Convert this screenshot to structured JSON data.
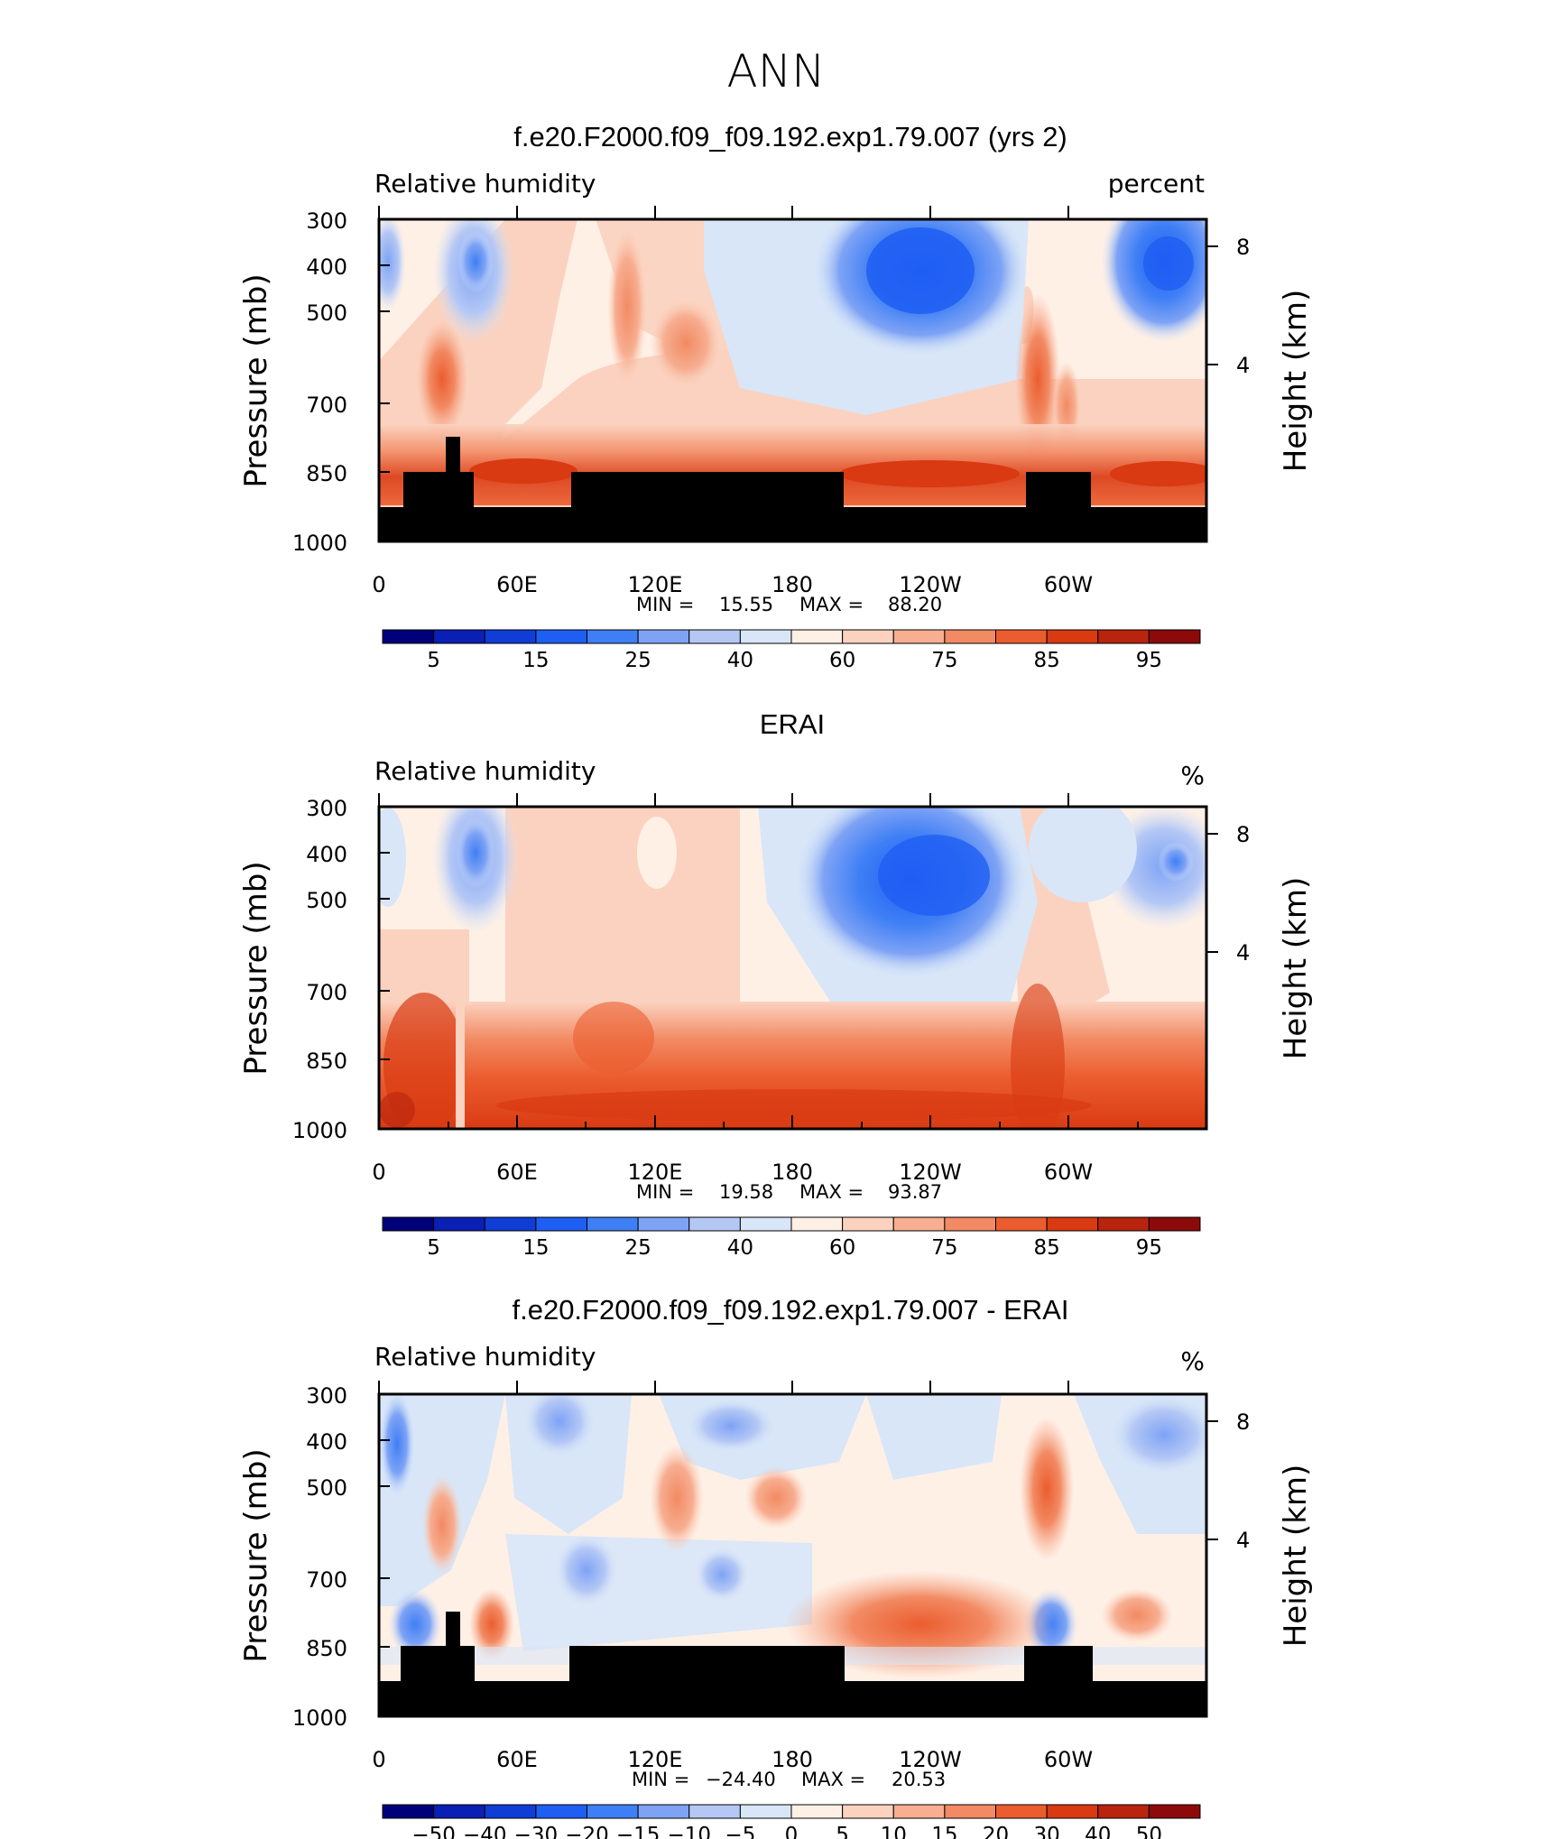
{
  "figure_title": "ANN",
  "colors": {
    "rh_scale": [
      "#00007a",
      "#0a1fb3",
      "#0f3dd6",
      "#1f5ef2",
      "#3f7ff5",
      "#7ea3f5",
      "#b5c8f5",
      "#d8e6f8",
      "#fff0e6",
      "#fbd2bf",
      "#f7ae91",
      "#f28a63",
      "#eb5d2f",
      "#d93a12",
      "#b8240e",
      "#8c0a0a"
    ],
    "diff_scale": [
      "#00007a",
      "#0a1fb3",
      "#0f3dd6",
      "#1f5ef2",
      "#3f7ff5",
      "#7ea3f5",
      "#b5c8f5",
      "#d8e6f8",
      "#fff0e6",
      "#fbd2bf",
      "#f7ae91",
      "#f28a63",
      "#eb5d2f",
      "#d93a12",
      "#b8240e",
      "#8c0a0a"
    ],
    "terrain": "#000000"
  },
  "chart_data": [
    {
      "type": "heatmap",
      "title": "f.e20.F2000.f09_f09.192.exp1.79.007 (yrs 2)",
      "left_label": "Relative humidity",
      "right_label": "percent",
      "ylabel": "Pressure (mb)",
      "ylabel_right": "Height (km)",
      "y_ticks": [
        "300",
        "400",
        "500",
        "700",
        "850",
        "1000"
      ],
      "y_right_ticks": [
        "8",
        "4"
      ],
      "x_ticks": [
        "0",
        "60E",
        "120E",
        "180",
        "120W",
        "60W"
      ],
      "stats": {
        "min_label": "MIN =",
        "min": "15.55",
        "max_label": "MAX =",
        "max": "88.20"
      },
      "colorbar_labels": [
        "5",
        "15",
        "25",
        "40",
        "60",
        "75",
        "85",
        "95"
      ],
      "terrain": true
    },
    {
      "type": "heatmap",
      "title": "ERAI",
      "left_label": "Relative humidity",
      "right_label": "%",
      "ylabel": "Pressure (mb)",
      "ylabel_right": "Height (km)",
      "y_ticks": [
        "300",
        "400",
        "500",
        "700",
        "850",
        "1000"
      ],
      "y_right_ticks": [
        "8",
        "4"
      ],
      "x_ticks": [
        "0",
        "60E",
        "120E",
        "180",
        "120W",
        "60W"
      ],
      "stats": {
        "min_label": "MIN =",
        "min": "19.58",
        "max_label": "MAX =",
        "max": "93.87"
      },
      "colorbar_labels": [
        "5",
        "15",
        "25",
        "40",
        "60",
        "75",
        "85",
        "95"
      ],
      "terrain": false
    },
    {
      "type": "heatmap",
      "title": "f.e20.F2000.f09_f09.192.exp1.79.007 - ERAI",
      "left_label": "Relative humidity",
      "right_label": "%",
      "ylabel": "Pressure (mb)",
      "ylabel_right": "Height (km)",
      "y_ticks": [
        "300",
        "400",
        "500",
        "700",
        "850",
        "1000"
      ],
      "y_right_ticks": [
        "8",
        "4"
      ],
      "x_ticks": [
        "0",
        "60E",
        "120E",
        "180",
        "120W",
        "60W"
      ],
      "stats": {
        "min_label": "MIN =",
        "min": "−24.40",
        "max_label": "MAX =",
        "max": "20.53"
      },
      "colorbar_labels": [
        "−50",
        "−40",
        "−30",
        "−20",
        "−15",
        "−10",
        "−5",
        "0",
        "5",
        "10",
        "15",
        "20",
        "30",
        "40",
        "50"
      ],
      "terrain": true
    }
  ]
}
